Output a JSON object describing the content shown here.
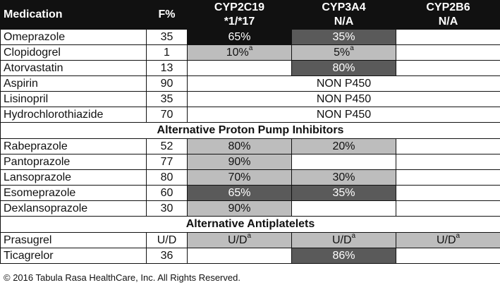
{
  "header": {
    "medication": "Medication",
    "f_pct": "F%",
    "cyp2c19_line1": "CYP2C19",
    "cyp2c19_line2": "*1/*17",
    "cyp3a4_line1": "CYP3A4",
    "cyp3a4_line2": "N/A",
    "cyp2b6_line1": "CYP2B6",
    "cyp2b6_line2": "N/A"
  },
  "rows": {
    "omeprazole": {
      "name": "Omeprazole",
      "f": "35",
      "c19": "65%",
      "c3a4": "35%",
      "c2b6": ""
    },
    "clopidogrel": {
      "name": "Clopidogrel",
      "f": "1",
      "c19": "10%",
      "c19_sup": "a",
      "c3a4": "5%",
      "c3a4_sup": "a",
      "c2b6": ""
    },
    "atorvastatin": {
      "name": "Atorvastatin",
      "f": "13",
      "c19": "",
      "c3a4": "80%",
      "c2b6": ""
    },
    "aspirin": {
      "name": "Aspirin",
      "f": "90",
      "span": "NON P450"
    },
    "lisinopril": {
      "name": "Lisinopril",
      "f": "35",
      "span": "NON P450"
    },
    "hctz": {
      "name": "Hydrochlorothiazide",
      "f": "70",
      "span": "NON P450"
    }
  },
  "section_ppi": "Alternative Proton Pump Inhibitors",
  "ppi": {
    "rabeprazole": {
      "name": "Rabeprazole",
      "f": "52",
      "c19": "80%",
      "c3a4": "20%",
      "c2b6": ""
    },
    "pantoprazole": {
      "name": "Pantoprazole",
      "f": "77",
      "c19": "90%",
      "c3a4": "",
      "c2b6": ""
    },
    "lansoprazole": {
      "name": "Lansoprazole",
      "f": "80",
      "c19": "70%",
      "c3a4": "30%",
      "c2b6": ""
    },
    "esomeprazole": {
      "name": "Esomeprazole",
      "f": "60",
      "c19": "65%",
      "c3a4": "35%",
      "c2b6": ""
    },
    "dexlansoprazole": {
      "name": "Dexlansoprazole",
      "f": "30",
      "c19": "90%",
      "c3a4": "",
      "c2b6": ""
    }
  },
  "section_anti": "Alternative Antiplatelets",
  "anti": {
    "prasugrel": {
      "name": "Prasugrel",
      "f": "U/D",
      "c19": "U/D",
      "c19_sup": "a",
      "c3a4": "U/D",
      "c3a4_sup": "a",
      "c2b6": "U/D",
      "c2b6_sup": "a"
    },
    "ticagrelor": {
      "name": "Ticagrelor",
      "f": "36",
      "c19": "",
      "c3a4": "86%",
      "c2b6": ""
    }
  },
  "footer": "© 2016 Tabula Rasa HealthCare, Inc. All Rights Reserved.",
  "colors": {
    "black": "#111111",
    "dark_gray": "#5a5a5a",
    "light_gray": "#bdbdbd"
  }
}
